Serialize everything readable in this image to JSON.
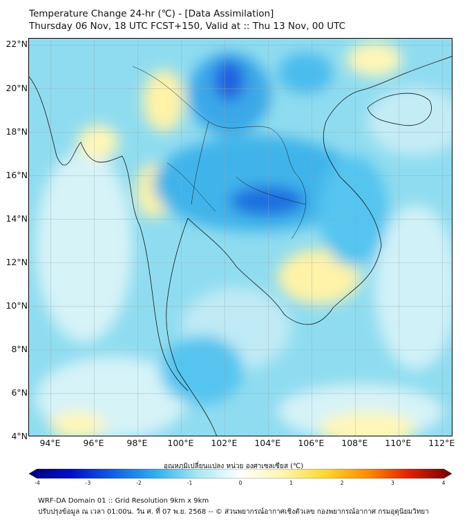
{
  "header": {
    "title": "Temperature Change 24-hr (℃) - [Data Assimilation]",
    "subtitle": "Thursday 06 Nov, 18 UTC FCST+150, Valid at :: Thu 13 Nov, 00 UTC"
  },
  "map": {
    "lat_labels": [
      "22°N",
      "20°N",
      "18°N",
      "16°N",
      "14°N",
      "12°N",
      "10°N",
      "8°N",
      "6°N",
      "4°N"
    ],
    "lon_labels": [
      "94°E",
      "96°E",
      "98°E",
      "100°E",
      "102°E",
      "104°E",
      "106°E",
      "108°E",
      "110°E",
      "112°E"
    ],
    "extent": {
      "lon_min": 93,
      "lon_max": 112.5,
      "lat_min": 4,
      "lat_max": 22.3
    },
    "background_color": "#8fdcf0"
  },
  "colorbar": {
    "label": "อุณหภูมิเปลี่ยนแปลง หน่วย องศาเซลเซียส (℃)",
    "ticks": [
      "-4",
      "-3",
      "-2",
      "-1",
      "0",
      "1",
      "2",
      "3",
      "4"
    ],
    "min": -4,
    "max": 4,
    "colors": [
      "#00007a",
      "#0010c8",
      "#1060e8",
      "#30b0ee",
      "#a8e8f4",
      "#ffffff",
      "#fff4b0",
      "#ffd830",
      "#ff8c00",
      "#e02000",
      "#700000"
    ]
  },
  "footer": {
    "line1": "WRF-DA Domain 01 :: Grid Resolution 9km x 9km",
    "line2": "ปรับปรุงข้อมูล ณ เวลา 01:00น. วัน ศ. ที่ 07 พ.ย. 2568 -- © ส่วนพยากรณ์อากาศเชิงตัวเลข กองพยากรณ์อากาศ กรมอุตุนิยมวิทยา"
  }
}
